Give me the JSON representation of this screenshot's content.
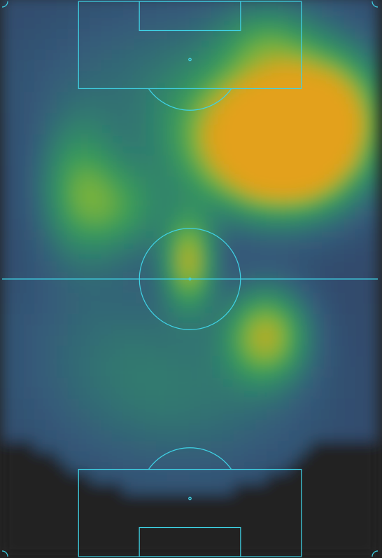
{
  "chart_data": {
    "type": "heatmap",
    "description_free": true,
    "pitch": {
      "orientation": "vertical",
      "length_m": 105,
      "width_m": 68,
      "line_color": "#3fd3e6",
      "background_color": "#222222"
    },
    "colormap": [
      "#2b3a5e",
      "#355b7a",
      "#2f7f6e",
      "#3a9b5a",
      "#7ab33c",
      "#c9a820",
      "#e3a11a"
    ],
    "grid": false,
    "hotspots": [
      {
        "x": 53,
        "y": 82,
        "intensity": 1.0,
        "sx": 9,
        "sy": 8
      },
      {
        "x": 52,
        "y": 74,
        "intensity": 0.55,
        "sx": 8,
        "sy": 7
      },
      {
        "x": 44,
        "y": 78,
        "intensity": 0.55,
        "sx": 10,
        "sy": 8
      },
      {
        "x": 60,
        "y": 85,
        "intensity": 0.35,
        "sx": 6,
        "sy": 8
      },
      {
        "x": 34,
        "y": 56,
        "intensity": 0.7,
        "sx": 3,
        "sy": 6
      },
      {
        "x": 48,
        "y": 42,
        "intensity": 0.7,
        "sx": 5,
        "sy": 6
      },
      {
        "x": 14,
        "y": 70,
        "intensity": 0.45,
        "sx": 5,
        "sy": 9
      },
      {
        "x": 22,
        "y": 66,
        "intensity": 0.35,
        "sx": 6,
        "sy": 6
      },
      {
        "x": 48,
        "y": 98,
        "intensity": 0.3,
        "sx": 6,
        "sy": 5
      },
      {
        "x": 35,
        "y": 30,
        "intensity": 0.18,
        "sx": 14,
        "sy": 10
      },
      {
        "x": 20,
        "y": 40,
        "intensity": 0.15,
        "sx": 12,
        "sy": 12
      },
      {
        "x": 34,
        "y": 90,
        "intensity": 0.2,
        "sx": 18,
        "sy": 10
      }
    ]
  }
}
